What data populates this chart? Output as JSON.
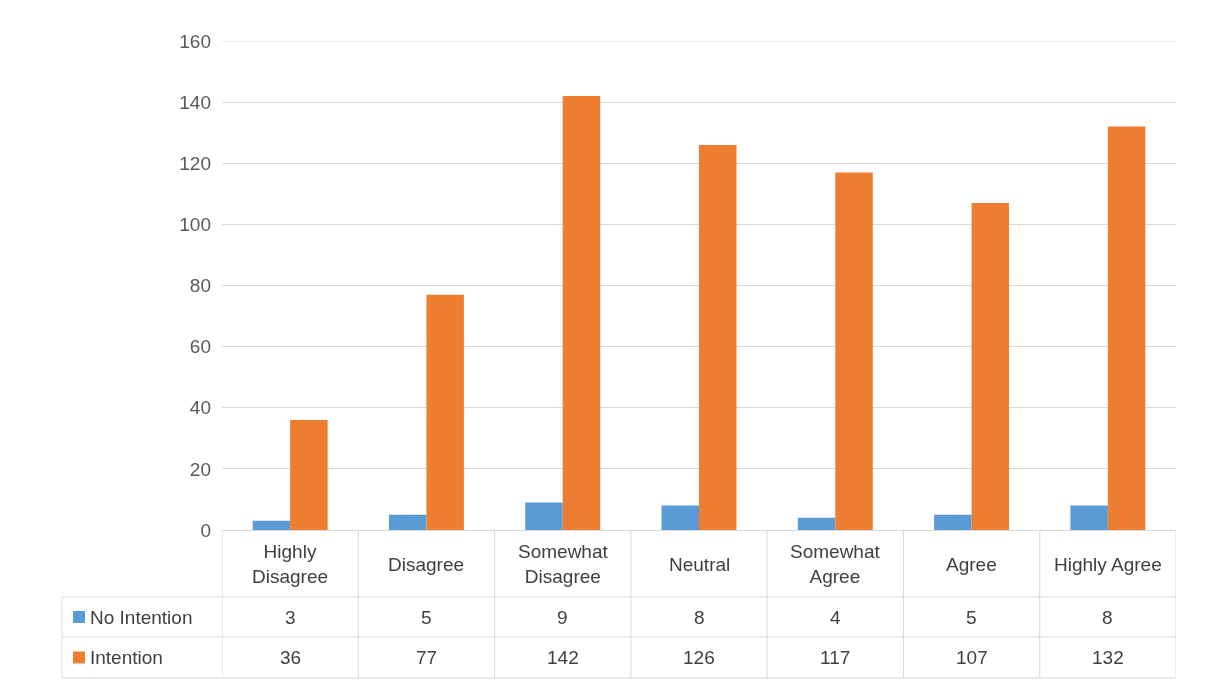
{
  "chart_data": {
    "type": "bar",
    "categories": [
      "Highly Disagree",
      "Disagree",
      "Somewhat Disagree",
      "Neutral",
      "Somewhat Agree",
      "Agree",
      "Highly Agree"
    ],
    "series": [
      {
        "name": "No Intention",
        "color": "#5b9bd5",
        "values": [
          3,
          5,
          9,
          8,
          4,
          5,
          8
        ]
      },
      {
        "name": "Intention",
        "color": "#ed7d31",
        "values": [
          36,
          77,
          142,
          126,
          117,
          107,
          132
        ]
      }
    ],
    "ylim": [
      0,
      160
    ],
    "yticks": [
      0,
      20,
      40,
      60,
      80,
      100,
      120,
      140,
      160
    ],
    "grid": "y",
    "legend": "bottom",
    "data_labels": true
  }
}
